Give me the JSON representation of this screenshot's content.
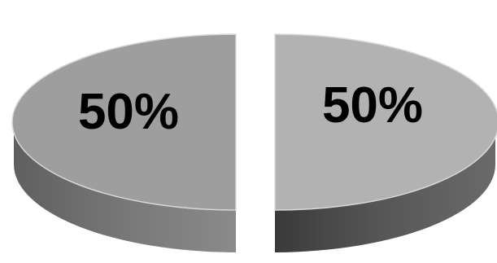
{
  "chart_data": {
    "type": "pie",
    "title": "",
    "style": "3d-exploded",
    "legend": "none",
    "slices": [
      {
        "label": "50%",
        "value": 50,
        "color": "#9e9e9e"
      },
      {
        "label": "50%",
        "value": 50,
        "color": "#b2b2b2"
      }
    ]
  }
}
